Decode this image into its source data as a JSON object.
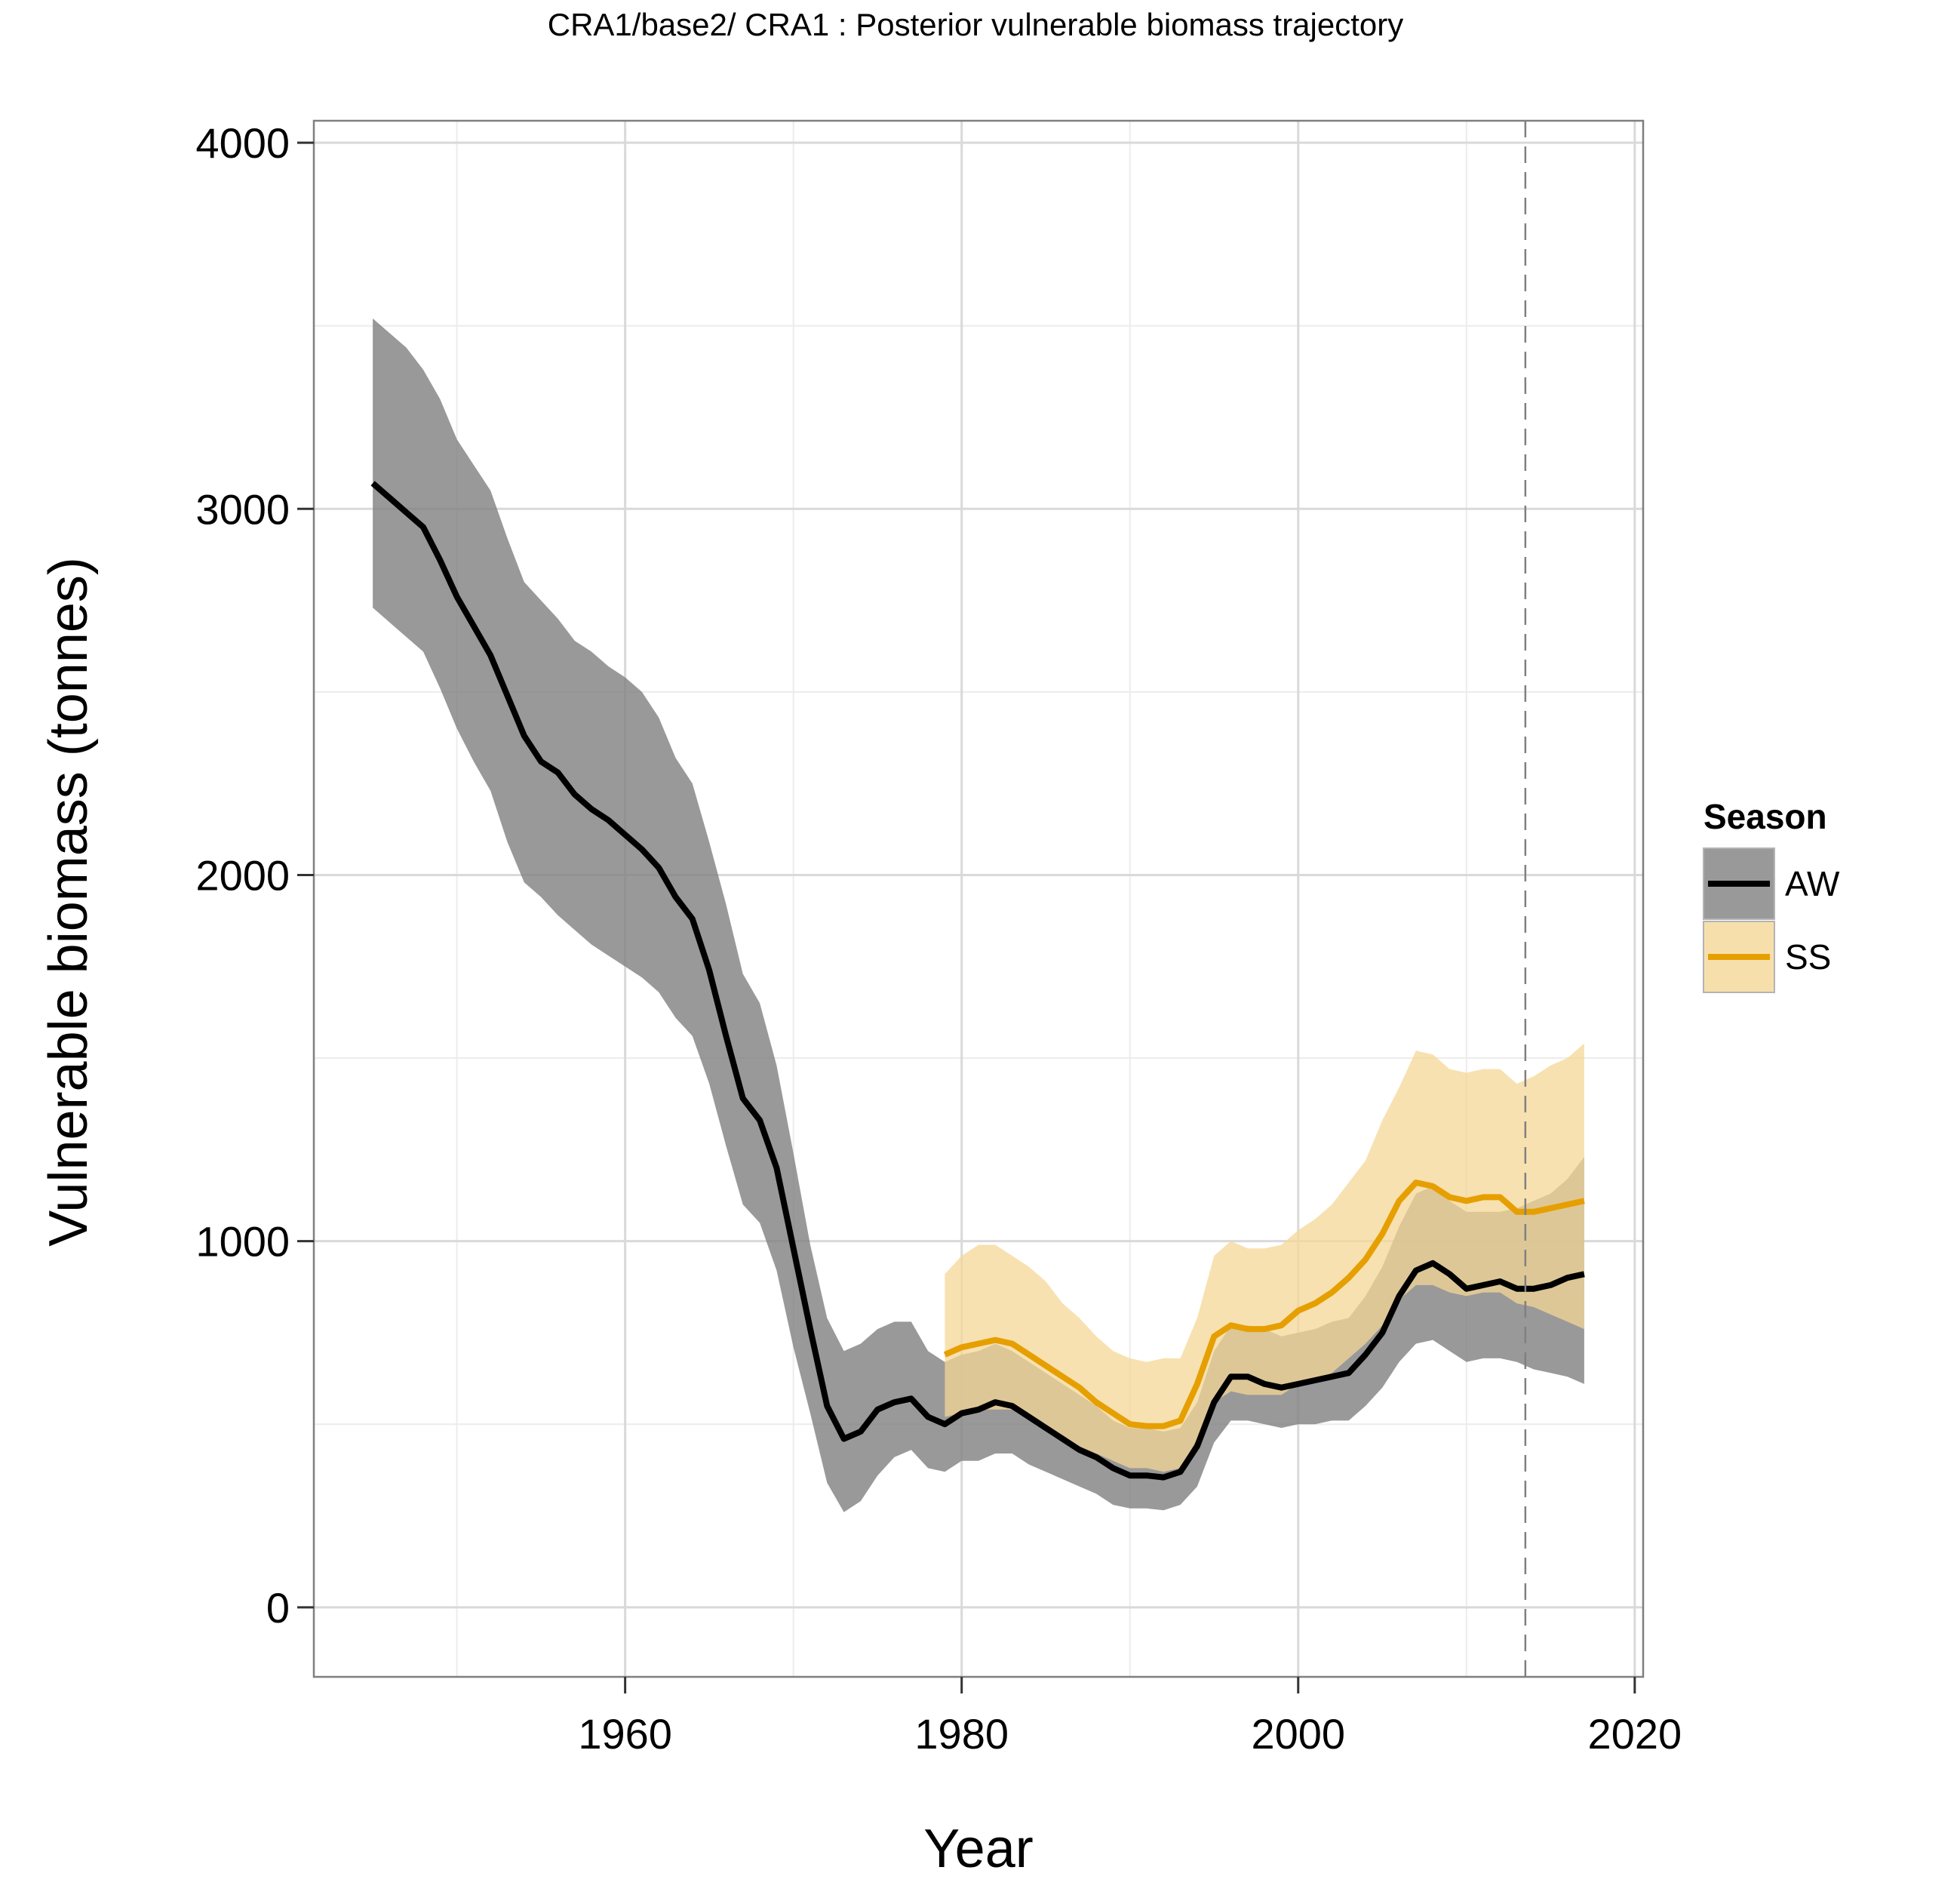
{
  "chart_data": {
    "type": "line",
    "title": "CRA1/base2/   CRA1 : Posterior vulnerable biomass trajectory",
    "xlabel": "Year",
    "ylabel": "Vulnerable biomass (tonnes)",
    "xlim": [
      1941.5,
      2020.5
    ],
    "ylim": [
      -190,
      4060
    ],
    "x_ticks": [
      1960,
      1980,
      2000,
      2020
    ],
    "y_ticks": [
      0,
      1000,
      2000,
      3000,
      4000
    ],
    "x_tick_labels": [
      "1960",
      "1980",
      "2000",
      "2020"
    ],
    "y_tick_labels": [
      "0",
      "1000",
      "2000",
      "3000",
      "4000"
    ],
    "grid": true,
    "reference_line_x": 2013.5,
    "legend": {
      "title": "Season",
      "position": "right",
      "entries": [
        "AW",
        "SS"
      ]
    },
    "series": [
      {
        "name": "AW",
        "line_color": "#000000",
        "band_color": "#7f7f7f",
        "x": [
          1945,
          1946,
          1947,
          1948,
          1949,
          1950,
          1951,
          1952,
          1953,
          1954,
          1955,
          1956,
          1957,
          1958,
          1959,
          1960,
          1961,
          1962,
          1963,
          1964,
          1965,
          1966,
          1967,
          1968,
          1969,
          1970,
          1971,
          1972,
          1973,
          1974,
          1975,
          1976,
          1977,
          1978,
          1979,
          1980,
          1981,
          1982,
          1983,
          1984,
          1985,
          1986,
          1987,
          1988,
          1989,
          1990,
          1991,
          1992,
          1993,
          1994,
          1995,
          1996,
          1997,
          1998,
          1999,
          2000,
          2001,
          2002,
          2003,
          2004,
          2005,
          2006,
          2007,
          2008,
          2009,
          2010,
          2011,
          2012,
          2013,
          2014,
          2015,
          2016,
          2017
        ],
        "median": [
          3070,
          3030,
          2990,
          2950,
          2860,
          2760,
          2680,
          2600,
          2490,
          2380,
          2310,
          2280,
          2220,
          2180,
          2150,
          2110,
          2070,
          2020,
          1940,
          1880,
          1740,
          1560,
          1390,
          1330,
          1200,
          980,
          760,
          550,
          460,
          480,
          540,
          560,
          570,
          520,
          500,
          530,
          540,
          560,
          550,
          520,
          490,
          460,
          430,
          410,
          380,
          360,
          360,
          355,
          370,
          440,
          560,
          630,
          630,
          610,
          600,
          610,
          620,
          630,
          640,
          690,
          750,
          850,
          920,
          940,
          910,
          870,
          880,
          890,
          870,
          870,
          880,
          900,
          910
        ],
        "lower": [
          2730,
          2690,
          2650,
          2610,
          2510,
          2400,
          2310,
          2230,
          2090,
          1980,
          1940,
          1890,
          1850,
          1810,
          1780,
          1750,
          1720,
          1680,
          1610,
          1560,
          1430,
          1260,
          1100,
          1050,
          920,
          710,
          530,
          340,
          260,
          290,
          360,
          410,
          430,
          380,
          370,
          400,
          400,
          420,
          420,
          390,
          370,
          350,
          330,
          310,
          280,
          270,
          270,
          265,
          280,
          330,
          450,
          510,
          510,
          500,
          490,
          500,
          500,
          510,
          510,
          550,
          600,
          670,
          720,
          730,
          700,
          670,
          680,
          680,
          670,
          650,
          640,
          630,
          610
        ],
        "upper": [
          3520,
          3480,
          3440,
          3380,
          3300,
          3190,
          3120,
          3050,
          2920,
          2800,
          2750,
          2700,
          2640,
          2610,
          2570,
          2540,
          2500,
          2430,
          2320,
          2250,
          2090,
          1920,
          1730,
          1650,
          1480,
          1240,
          990,
          790,
          700,
          720,
          760,
          780,
          780,
          700,
          670,
          690,
          700,
          720,
          700,
          670,
          640,
          610,
          580,
          550,
          510,
          490,
          490,
          480,
          490,
          560,
          700,
          770,
          770,
          760,
          740,
          750,
          760,
          780,
          790,
          850,
          930,
          1040,
          1130,
          1150,
          1110,
          1080,
          1080,
          1080,
          1090,
          1110,
          1130,
          1170,
          1230
        ]
      },
      {
        "name": "SS",
        "line_color": "#e69f00",
        "band_color": "#f5d797",
        "x": [
          1979,
          1980,
          1981,
          1982,
          1983,
          1984,
          1985,
          1986,
          1987,
          1988,
          1989,
          1990,
          1991,
          1992,
          1993,
          1994,
          1995,
          1996,
          1997,
          1998,
          1999,
          2000,
          2001,
          2002,
          2003,
          2004,
          2005,
          2006,
          2007,
          2008,
          2009,
          2010,
          2011,
          2012,
          2013,
          2014,
          2015,
          2016,
          2017
        ],
        "median": [
          690,
          710,
          720,
          730,
          720,
          690,
          660,
          630,
          600,
          560,
          530,
          500,
          495,
          495,
          510,
          610,
          740,
          770,
          760,
          760,
          770,
          810,
          830,
          860,
          900,
          950,
          1020,
          1110,
          1160,
          1150,
          1120,
          1110,
          1120,
          1120,
          1080,
          1080,
          1090,
          1100,
          1110
        ],
        "lower": [
          520,
          530,
          540,
          540,
          540,
          520,
          490,
          460,
          440,
          420,
          400,
          380,
          380,
          370,
          380,
          460,
          560,
          590,
          580,
          580,
          580,
          610,
          620,
          640,
          680,
          720,
          770,
          840,
          880,
          880,
          860,
          850,
          860,
          860,
          830,
          820,
          800,
          780,
          760
        ],
        "upper": [
          910,
          960,
          990,
          990,
          960,
          930,
          890,
          830,
          790,
          740,
          700,
          680,
          670,
          680,
          680,
          790,
          960,
          1000,
          980,
          980,
          990,
          1030,
          1060,
          1100,
          1160,
          1220,
          1330,
          1420,
          1520,
          1510,
          1470,
          1460,
          1470,
          1470,
          1430,
          1450,
          1480,
          1500,
          1540
        ]
      }
    ]
  }
}
